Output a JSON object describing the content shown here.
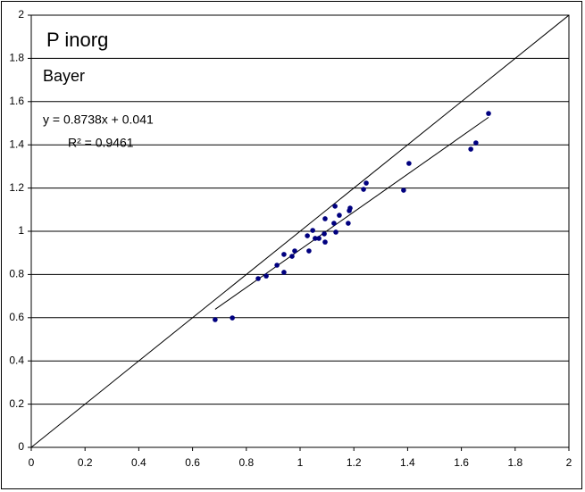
{
  "chart_data": {
    "type": "scatter",
    "title": "P inorg",
    "subtitle": "Bayer",
    "annotations": [
      "y = 0.8738x + 0.041",
      "R² = 0.9461"
    ],
    "trendline": {
      "slope": 0.8738,
      "intercept": 0.041
    },
    "identity_line": true,
    "series": [
      {
        "color": "#00007f",
        "x": [
          0.684,
          0.748,
          0.844,
          0.874,
          0.914,
          0.94,
          0.94,
          0.97,
          0.98,
          1.027,
          1.033,
          1.047,
          1.056,
          1.07,
          1.09,
          1.093,
          1.093,
          1.126,
          1.13,
          1.133,
          1.146,
          1.179,
          1.183,
          1.186,
          1.236,
          1.246,
          1.385,
          1.405,
          1.635,
          1.654,
          1.701
        ],
        "values": [
          0.591,
          0.599,
          0.781,
          0.793,
          0.843,
          0.893,
          0.81,
          0.884,
          0.909,
          0.979,
          0.909,
          1.004,
          0.967,
          0.967,
          0.988,
          0.95,
          1.058,
          1.037,
          1.116,
          0.996,
          1.074,
          1.037,
          1.095,
          1.107,
          1.194,
          1.223,
          1.19,
          1.314,
          1.38,
          1.409,
          1.545
        ]
      }
    ],
    "xlim": [
      0,
      2
    ],
    "xticks": [
      0,
      0.2,
      0.4,
      0.6,
      0.8,
      1,
      1.2,
      1.4,
      1.6,
      1.8,
      2
    ],
    "ylim": [
      0,
      2
    ],
    "yticks": [
      0,
      0.2,
      0.4,
      0.6,
      0.8,
      1,
      1.2,
      1.4,
      1.6,
      1.8,
      2
    ],
    "grid": true
  }
}
